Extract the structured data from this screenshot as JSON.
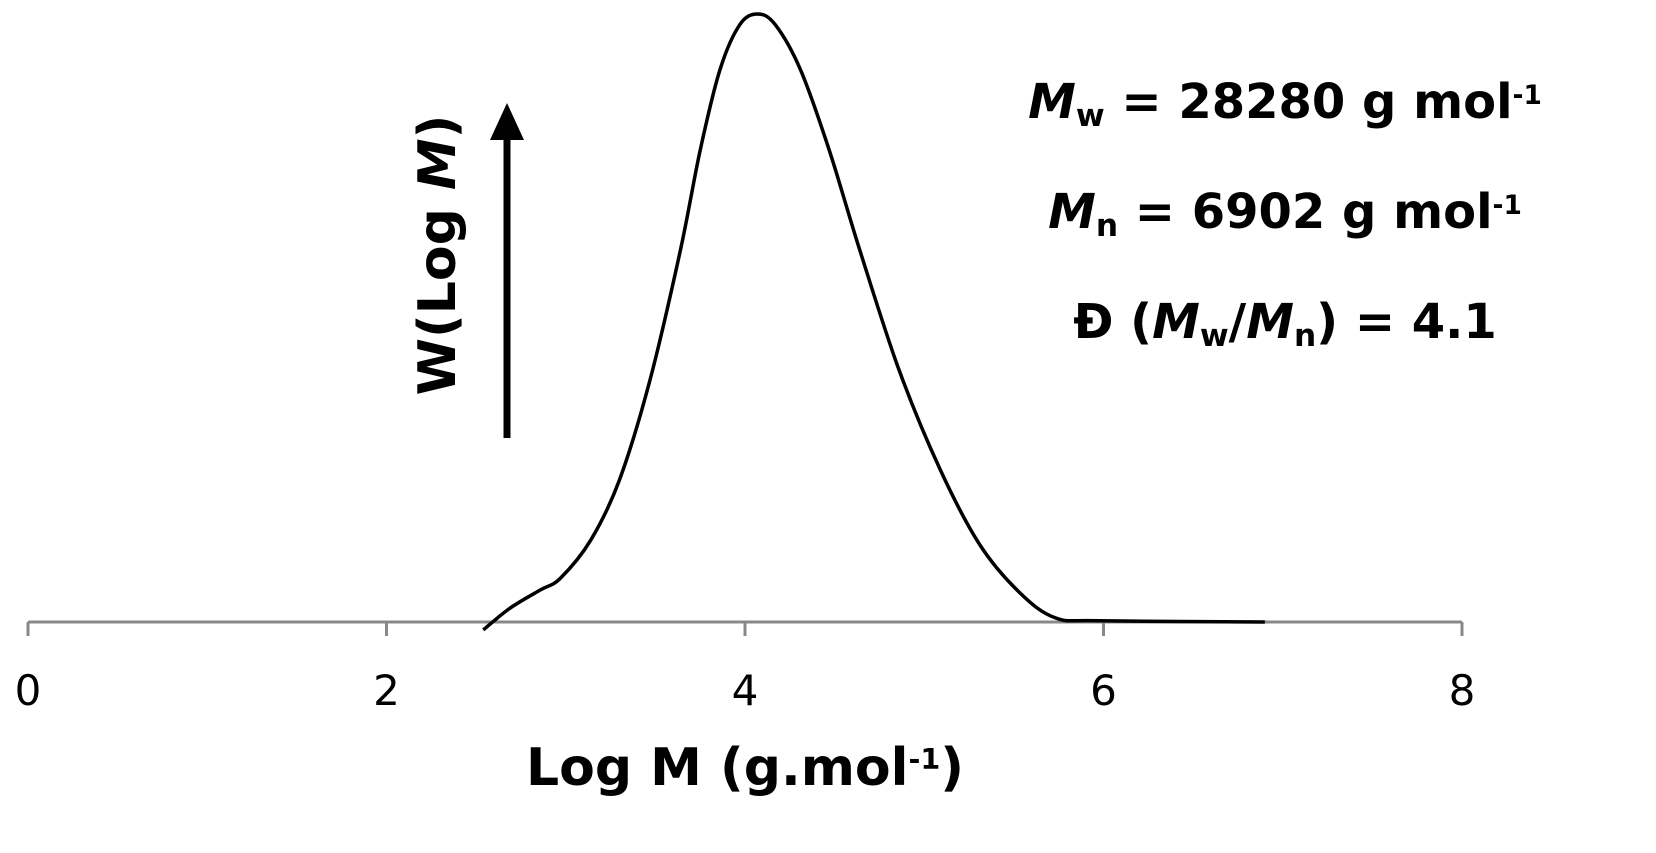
{
  "chart_data": {
    "type": "line",
    "xlabel": [
      {
        "text": "Log M (g.mol"
      },
      {
        "text": "-1",
        "style": "sup"
      },
      {
        "text": ")"
      }
    ],
    "ylabel": [
      {
        "text": "W(Log "
      },
      {
        "text": "M",
        "style": "italic"
      },
      {
        "text": ")"
      }
    ],
    "annotations": [
      [
        {
          "text": "M",
          "style": "italic"
        },
        {
          "text": "w",
          "style": "sub"
        },
        {
          "text": " = 28280 g mol"
        },
        {
          "text": "-1",
          "style": "sup"
        }
      ],
      [
        {
          "text": "M",
          "style": "italic"
        },
        {
          "text": "n",
          "style": "sub"
        },
        {
          "text": " = 6902 g mol"
        },
        {
          "text": "-1",
          "style": "sup"
        }
      ],
      [
        {
          "text": "Đ ("
        },
        {
          "text": "M",
          "style": "italic"
        },
        {
          "text": "w",
          "style": "sub"
        },
        {
          "text": "/"
        },
        {
          "text": "M",
          "style": "italic"
        },
        {
          "text": "n",
          "style": "sub"
        },
        {
          "text": ") = 4.1"
        }
      ]
    ],
    "x": [
      2.54,
      2.69,
      2.86,
      2.97,
      3.14,
      3.3,
      3.47,
      3.64,
      3.75,
      3.86,
      3.97,
      4.07,
      4.17,
      4.31,
      4.47,
      4.64,
      4.86,
      5.09,
      5.31,
      5.53,
      5.73,
      5.98,
      6.9
    ],
    "values": [
      -0.013,
      0.023,
      0.053,
      0.072,
      0.135,
      0.234,
      0.398,
      0.612,
      0.776,
      0.908,
      0.982,
      1.0,
      0.982,
      0.908,
      0.776,
      0.612,
      0.414,
      0.25,
      0.127,
      0.049,
      0.007,
      0.002,
      0
    ],
    "color": "#000000",
    "xlim": [
      0,
      8
    ],
    "xticks": [
      0,
      2,
      4,
      6,
      8
    ],
    "ylim": [
      0,
      1
    ]
  }
}
